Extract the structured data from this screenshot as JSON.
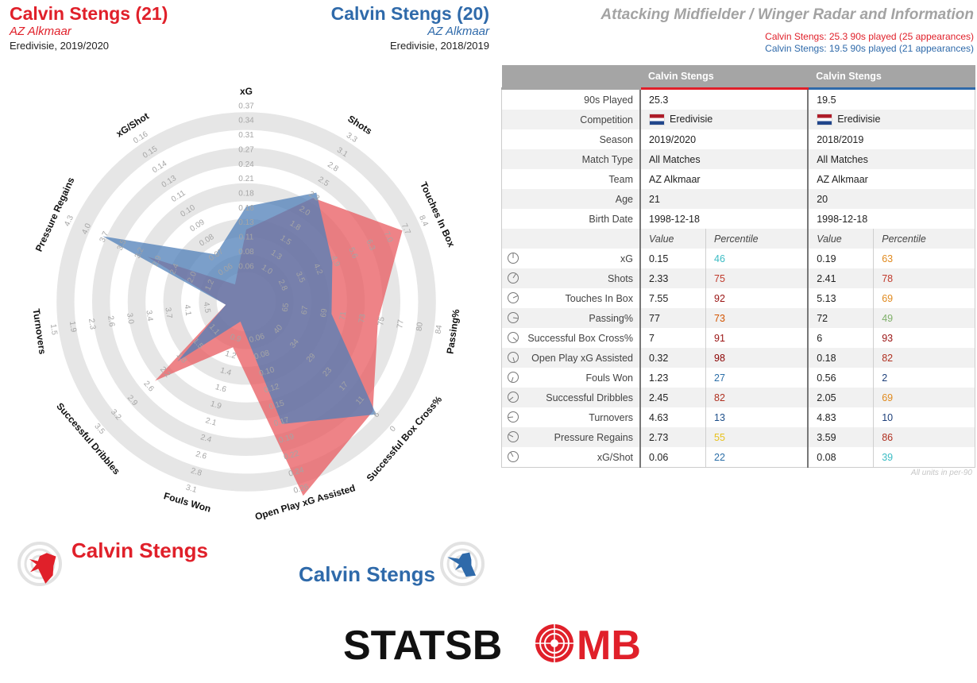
{
  "header": {
    "player1": {
      "name": "Calvin Stengs (21)",
      "team": "AZ Alkmaar",
      "competition": "Eredivisie, 2019/2020"
    },
    "player2": {
      "name": "Calvin Stengs (20)",
      "team": "AZ Alkmaar",
      "competition": "Eredivisie, 2018/2019"
    },
    "title": "Attacking Midfielder / Winger Radar and Information",
    "played1": "Calvin Stengs: 25.3 90s played (25 appearances)",
    "played2": "Calvin Stengs: 19.5 90s played (21 appearances)"
  },
  "colors": {
    "player1": "#e0202a",
    "player2": "#2f6aaa",
    "player1_fill": "#e8595f",
    "player2_fill": "#4f7fb8",
    "ring": "#e6e6e6",
    "tick": "#a5a5a5"
  },
  "chart_data": {
    "type": "radar",
    "axes": [
      {
        "label": "xG",
        "ticks": [
          "0.06",
          "0.08",
          "0.11",
          "0.13",
          "0.16",
          "0.18",
          "0.21",
          "0.24",
          "0.27",
          "0.31",
          "0.34",
          "0.37"
        ],
        "min": 0.06,
        "max": 0.37
      },
      {
        "label": "Shots",
        "ticks": [
          "1.0",
          "1.3",
          "1.5",
          "1.8",
          "2.0",
          "2.3",
          "2.5",
          "2.8",
          "3.1",
          "3.3"
        ],
        "min": 1.0,
        "max": 3.3
      },
      {
        "label": "Touches In Box",
        "ticks": [
          "2.8",
          "3.5",
          "4.2",
          "4.9",
          "5.6",
          "6.3",
          "7.0",
          "7.7",
          "8.4"
        ],
        "min": 2.8,
        "max": 8.4
      },
      {
        "label": "Passing%",
        "ticks": [
          "65",
          "67",
          "69",
          "71",
          "73",
          "75",
          "77",
          "80",
          "84"
        ],
        "min": 65,
        "max": 84
      },
      {
        "label": "Successful Box Cross%",
        "ticks": [
          "40",
          "34",
          "29",
          "23",
          "17",
          "11",
          "6",
          "0"
        ],
        "min": 40,
        "max": 0
      },
      {
        "label": "Open Play xG Assisted",
        "ticks": [
          "0.06",
          "0.08",
          "0.10",
          "0.12",
          "0.15",
          "0.17",
          "0.19",
          "0.22",
          "0.24",
          "0.26"
        ],
        "min": 0.06,
        "max": 0.26
      },
      {
        "label": "Fouls Won",
        "ticks": [
          "0.9",
          "1.2",
          "1.4",
          "1.6",
          "1.9",
          "2.1",
          "2.4",
          "2.6",
          "2.8",
          "3.1"
        ],
        "min": 0.9,
        "max": 3.1
      },
      {
        "label": "Successful Dribbles",
        "ticks": [
          "1.1",
          "1.5",
          "1.8",
          "2.2",
          "2.6",
          "2.9",
          "3.2",
          "3.5"
        ],
        "min": 1.1,
        "max": 3.5
      },
      {
        "label": "Turnovers",
        "ticks": [
          "4.5",
          "4.1",
          "3.7",
          "3.4",
          "3.0",
          "2.6",
          "2.3",
          "1.9",
          "1.5"
        ],
        "min": 4.5,
        "max": 1.5
      },
      {
        "label": "Pressure Regains",
        "ticks": [
          "1.2",
          "2.0",
          "2.4",
          "2.9",
          "3.2",
          "3.5",
          "3.7",
          "4.0",
          "4.3"
        ],
        "min": 1.2,
        "max": 4.3
      },
      {
        "label": "xG/Shot",
        "ticks": [
          "0.06",
          "0.07",
          "0.08",
          "0.09",
          "0.10",
          "0.11",
          "0.13",
          "0.14",
          "0.15",
          "0.16"
        ],
        "min": 0.06,
        "max": 0.16
      }
    ],
    "series": [
      {
        "name": "Calvin Stengs (21)",
        "values": [
          0.15,
          2.33,
          7.55,
          77,
          7,
          0.32,
          1.23,
          2.45,
          4.63,
          2.73,
          0.06
        ]
      },
      {
        "name": "Calvin Stengs (20)",
        "values": [
          0.19,
          2.41,
          5.13,
          72,
          6,
          0.18,
          0.56,
          2.05,
          4.83,
          3.59,
          0.08
        ]
      }
    ]
  },
  "legend": {
    "player1": "Calvin Stengs",
    "player2": "Calvin Stengs"
  },
  "table": {
    "headers": [
      "",
      "Calvin Stengs",
      "",
      "Calvin Stengs",
      ""
    ],
    "info": [
      {
        "label": "90s Played",
        "p1": "25.3",
        "p2": "19.5"
      },
      {
        "label": "Competition",
        "p1": "Eredivisie",
        "p2": "Eredivisie",
        "flag": true
      },
      {
        "label": "Season",
        "p1": "2019/2020",
        "p2": "2018/2019"
      },
      {
        "label": "Match Type",
        "p1": "All Matches",
        "p2": "All Matches"
      },
      {
        "label": "Team",
        "p1": "AZ Alkmaar",
        "p2": "AZ Alkmaar"
      },
      {
        "label": "Age",
        "p1": "21",
        "p2": "20"
      },
      {
        "label": "Birth Date",
        "p1": "1998-12-18",
        "p2": "1998-12-18"
      }
    ],
    "subheader": {
      "value": "Value",
      "percentile": "Percentile"
    },
    "metrics": [
      {
        "label": "xG",
        "v1": "0.15",
        "p1": "46",
        "c1": "#3bbcc4",
        "v2": "0.19",
        "p2": "63",
        "c2": "#e08a1e"
      },
      {
        "label": "Shots",
        "v1": "2.33",
        "p1": "75",
        "c1": "#c0392b",
        "v2": "2.41",
        "p2": "78",
        "c2": "#c0392b"
      },
      {
        "label": "Touches In Box",
        "v1": "7.55",
        "p1": "92",
        "c1": "#9a1414",
        "v2": "5.13",
        "p2": "69",
        "c2": "#e08a1e"
      },
      {
        "label": "Passing%",
        "v1": "77",
        "p1": "73",
        "c1": "#d35400",
        "v2": "72",
        "p2": "49",
        "c2": "#7fb069"
      },
      {
        "label": "Successful Box Cross%",
        "v1": "7",
        "p1": "91",
        "c1": "#9a1414",
        "v2": "6",
        "p2": "93",
        "c2": "#9a1414"
      },
      {
        "label": "Open Play xG Assisted",
        "v1": "0.32",
        "p1": "98",
        "c1": "#8b0000",
        "v2": "0.18",
        "p2": "82",
        "c2": "#b03020"
      },
      {
        "label": "Fouls Won",
        "v1": "1.23",
        "p1": "27",
        "c1": "#2c6fa8",
        "v2": "0.56",
        "p2": "2",
        "c2": "#1d3f7a"
      },
      {
        "label": "Successful Dribbles",
        "v1": "2.45",
        "p1": "82",
        "c1": "#b03020",
        "v2": "2.05",
        "p2": "69",
        "c2": "#e08a1e"
      },
      {
        "label": "Turnovers",
        "v1": "4.63",
        "p1": "13",
        "c1": "#1d4f8a",
        "v2": "4.83",
        "p2": "10",
        "c2": "#1d3f7a"
      },
      {
        "label": "Pressure Regains",
        "v1": "2.73",
        "p1": "55",
        "c1": "#e8c21e",
        "v2": "3.59",
        "p2": "86",
        "c2": "#b03020"
      },
      {
        "label": "xG/Shot",
        "v1": "0.06",
        "p1": "22",
        "c1": "#2c6fa8",
        "v2": "0.08",
        "p2": "39",
        "c2": "#3bbcc4"
      }
    ],
    "footnote": "All units in per-90"
  },
  "logo": {
    "left": "STATSB",
    "o": "O",
    "right": "MB"
  }
}
